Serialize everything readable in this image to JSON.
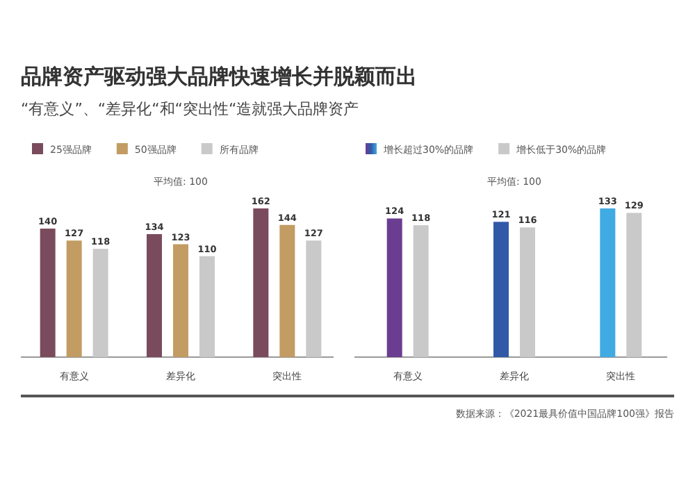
{
  "chart_data": [
    {
      "type": "bar",
      "title": "品牌资产驱动强大品牌快速增长并脱颖而出",
      "subtitle": "“有意义”、“差异化“和“突出性“造就强大品牌资产",
      "categories": [
        "有意义",
        "差异化",
        "突出性"
      ],
      "annotations": [
        "平均值: 100"
      ],
      "data_labels": true,
      "legend": "top left",
      "series": [
        {
          "name": "25强品牌",
          "color": "#7a4b5c",
          "values": [
            140,
            134,
            162
          ]
        },
        {
          "name": "50强品牌",
          "color": "#c29c62",
          "values": [
            127,
            123,
            144
          ]
        },
        {
          "name": "所有品牌",
          "color": "#c9c9c9",
          "values": [
            118,
            110,
            127
          ]
        }
      ]
    },
    {
      "type": "bar",
      "categories": [
        "有意义",
        "差异化",
        "突出性"
      ],
      "annotations": [
        "平均值: 100",
        "数据来源：《2021最具价值中国品牌100强》报告"
      ],
      "data_labels": true,
      "legend": "top left",
      "series": [
        {
          "name": "增长超过30%的品牌",
          "colors": [
            "#6a3d90",
            "#3159a8",
            "#40aae2"
          ],
          "values": [
            124,
            121,
            133
          ]
        },
        {
          "name": "增长低于30%的品牌",
          "color": "#c9c9c9",
          "values": [
            118,
            116,
            129
          ]
        }
      ]
    }
  ]
}
